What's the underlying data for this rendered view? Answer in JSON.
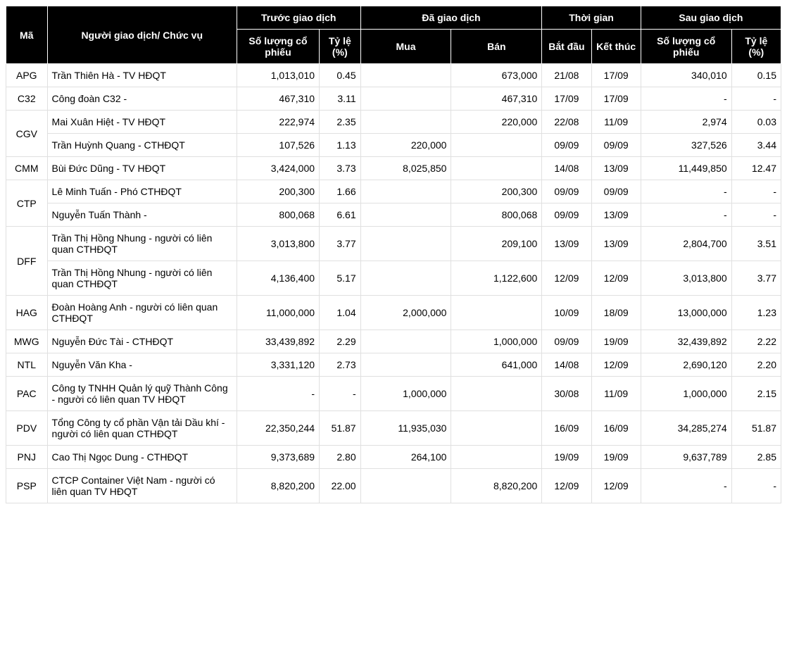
{
  "headers": {
    "code": "Mã",
    "trader": "Người giao dịch/ Chức vụ",
    "before": "Trước giao dịch",
    "traded": "Đã giao dịch",
    "time": "Thời gian",
    "after": "Sau giao dịch",
    "qty": "Số lượng cổ phiếu",
    "pct": "Tỷ lệ (%)",
    "buy": "Mua",
    "sell": "Bán",
    "start": "Bắt đầu",
    "end": "Kết thúc"
  },
  "groups": [
    {
      "code": "APG",
      "rows": [
        {
          "trader": "Trần Thiên Hà - TV HĐQT",
          "before_qty": "1,013,010",
          "before_pct": "0.45",
          "buy": "",
          "sell": "673,000",
          "start": "21/08",
          "end": "17/09",
          "after_qty": "340,010",
          "after_pct": "0.15"
        }
      ]
    },
    {
      "code": "C32",
      "rows": [
        {
          "trader": "Công đoàn C32 -",
          "before_qty": "467,310",
          "before_pct": "3.11",
          "buy": "",
          "sell": "467,310",
          "start": "17/09",
          "end": "17/09",
          "after_qty": "-",
          "after_pct": "-"
        }
      ]
    },
    {
      "code": "CGV",
      "rows": [
        {
          "trader": "Mai Xuân Hiệt - TV HĐQT",
          "before_qty": "222,974",
          "before_pct": "2.35",
          "buy": "",
          "sell": "220,000",
          "start": "22/08",
          "end": "11/09",
          "after_qty": "2,974",
          "after_pct": "0.03"
        },
        {
          "trader": "Trần Huỳnh Quang - CTHĐQT",
          "before_qty": "107,526",
          "before_pct": "1.13",
          "buy": "220,000",
          "sell": "",
          "start": "09/09",
          "end": "09/09",
          "after_qty": "327,526",
          "after_pct": "3.44"
        }
      ]
    },
    {
      "code": "CMM",
      "rows": [
        {
          "trader": "Bùi Đức Dũng - TV HĐQT",
          "before_qty": "3,424,000",
          "before_pct": "3.73",
          "buy": "8,025,850",
          "sell": "",
          "start": "14/08",
          "end": "13/09",
          "after_qty": "11,449,850",
          "after_pct": "12.47"
        }
      ]
    },
    {
      "code": "CTP",
      "rows": [
        {
          "trader": "Lê Minh Tuấn - Phó CTHĐQT",
          "before_qty": "200,300",
          "before_pct": "1.66",
          "buy": "",
          "sell": "200,300",
          "start": "09/09",
          "end": "09/09",
          "after_qty": "-",
          "after_pct": "-"
        },
        {
          "trader": "Nguyễn Tuấn Thành -",
          "before_qty": "800,068",
          "before_pct": "6.61",
          "buy": "",
          "sell": "800,068",
          "start": "09/09",
          "end": "13/09",
          "after_qty": "-",
          "after_pct": "-"
        }
      ]
    },
    {
      "code": "DFF",
      "rows": [
        {
          "trader": "Trần Thị Hồng Nhung - người có liên quan CTHĐQT",
          "before_qty": "3,013,800",
          "before_pct": "3.77",
          "buy": "",
          "sell": "209,100",
          "start": "13/09",
          "end": "13/09",
          "after_qty": "2,804,700",
          "after_pct": "3.51"
        },
        {
          "trader": "Trần Thị Hồng Nhung - người có liên quan CTHĐQT",
          "before_qty": "4,136,400",
          "before_pct": "5.17",
          "buy": "",
          "sell": "1,122,600",
          "start": "12/09",
          "end": "12/09",
          "after_qty": "3,013,800",
          "after_pct": "3.77"
        }
      ]
    },
    {
      "code": "HAG",
      "rows": [
        {
          "trader": "Đoàn Hoàng Anh - người có liên quan CTHĐQT",
          "before_qty": "11,000,000",
          "before_pct": "1.04",
          "buy": "2,000,000",
          "sell": "",
          "start": "10/09",
          "end": "18/09",
          "after_qty": "13,000,000",
          "after_pct": "1.23"
        }
      ]
    },
    {
      "code": "MWG",
      "rows": [
        {
          "trader": "Nguyễn Đức Tài - CTHĐQT",
          "before_qty": "33,439,892",
          "before_pct": "2.29",
          "buy": "",
          "sell": "1,000,000",
          "start": "09/09",
          "end": "19/09",
          "after_qty": "32,439,892",
          "after_pct": "2.22"
        }
      ]
    },
    {
      "code": "NTL",
      "rows": [
        {
          "trader": "Nguyễn Văn Kha -",
          "before_qty": "3,331,120",
          "before_pct": "2.73",
          "buy": "",
          "sell": "641,000",
          "start": "14/08",
          "end": "12/09",
          "after_qty": "2,690,120",
          "after_pct": "2.20"
        }
      ]
    },
    {
      "code": "PAC",
      "rows": [
        {
          "trader": "Công ty TNHH Quản lý quỹ Thành Công - người có liên quan TV HĐQT",
          "before_qty": "-",
          "before_pct": "-",
          "buy": "1,000,000",
          "sell": "",
          "start": "30/08",
          "end": "11/09",
          "after_qty": "1,000,000",
          "after_pct": "2.15"
        }
      ]
    },
    {
      "code": "PDV",
      "rows": [
        {
          "trader": "Tổng Công ty cổ phần Vận tải Dầu khí - người có liên quan CTHĐQT",
          "before_qty": "22,350,244",
          "before_pct": "51.87",
          "buy": "11,935,030",
          "sell": "",
          "start": "16/09",
          "end": "16/09",
          "after_qty": "34,285,274",
          "after_pct": "51.87"
        }
      ]
    },
    {
      "code": "PNJ",
      "rows": [
        {
          "trader": "Cao Thị Ngọc Dung - CTHĐQT",
          "before_qty": "9,373,689",
          "before_pct": "2.80",
          "buy": "264,100",
          "sell": "",
          "start": "19/09",
          "end": "19/09",
          "after_qty": "9,637,789",
          "after_pct": "2.85"
        }
      ]
    },
    {
      "code": "PSP",
      "rows": [
        {
          "trader": "CTCP Container Việt Nam - người có liên quan TV HĐQT",
          "before_qty": "8,820,200",
          "before_pct": "22.00",
          "buy": "",
          "sell": "8,820,200",
          "start": "12/09",
          "end": "12/09",
          "after_qty": "-",
          "after_pct": "-"
        }
      ]
    }
  ]
}
